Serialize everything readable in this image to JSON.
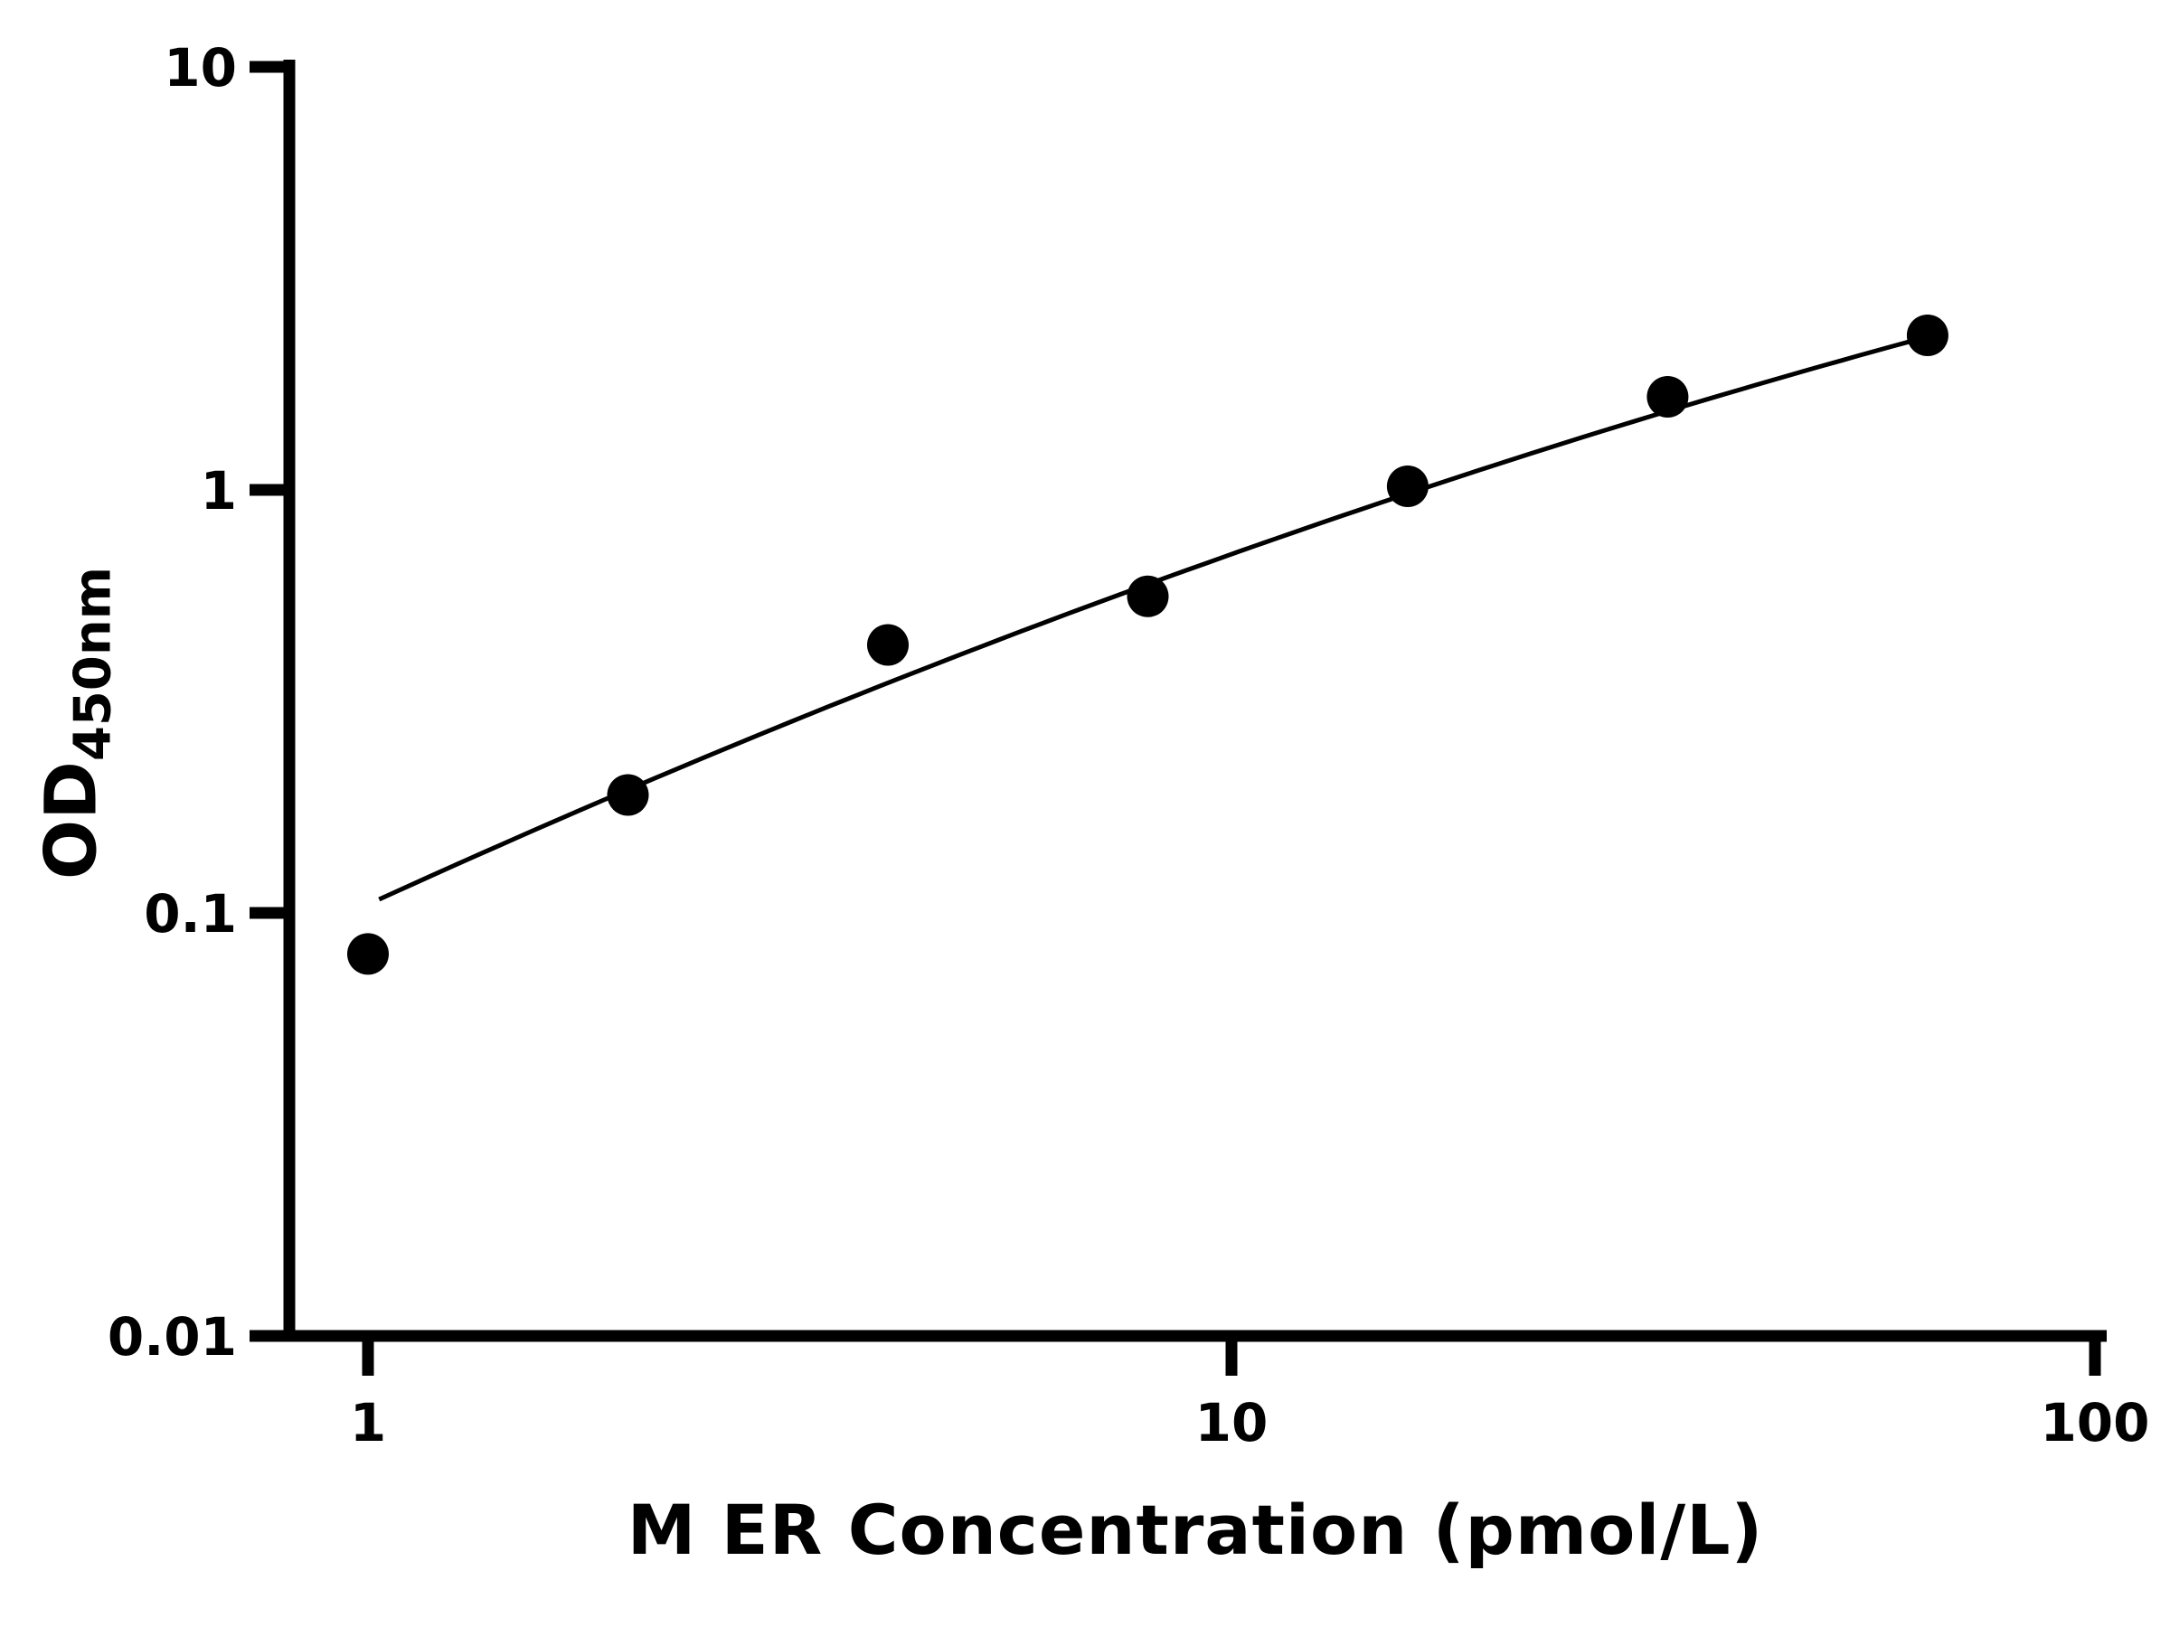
{
  "chart_data": {
    "type": "scatter",
    "title": "",
    "xlabel": "M ER Concentration (pmol/L)",
    "ylabel_main": "OD",
    "ylabel_sub": "450nm",
    "x_scale": "log",
    "y_scale": "log",
    "xlim": [
      1,
      100
    ],
    "ylim": [
      0.01,
      10
    ],
    "grid": false,
    "legend": "none",
    "x_ticks": [
      {
        "value": 1,
        "label": "1"
      },
      {
        "value": 10,
        "label": "10"
      },
      {
        "value": 100,
        "label": "100"
      }
    ],
    "y_ticks": [
      {
        "value": 0.01,
        "label": "0.01"
      },
      {
        "value": 0.1,
        "label": "0.1"
      },
      {
        "value": 1,
        "label": "1"
      },
      {
        "value": 10,
        "label": "10"
      }
    ],
    "points": [
      {
        "x": 1,
        "y": 0.08
      },
      {
        "x": 2,
        "y": 0.19
      },
      {
        "x": 4,
        "y": 0.43
      },
      {
        "x": 8,
        "y": 0.56
      },
      {
        "x": 16,
        "y": 1.02
      },
      {
        "x": 32,
        "y": 1.66
      },
      {
        "x": 64,
        "y": 2.32
      }
    ],
    "fit_curve": {
      "type": "quadratic-loglog",
      "coeffs": [
        -0.98,
        0.9333,
        -0.1053
      ],
      "x_range": [
        1.03,
        64
      ]
    },
    "marker_color": "#000000",
    "line_color": "#000000",
    "axis_color": "#000000",
    "background": "#ffffff"
  }
}
